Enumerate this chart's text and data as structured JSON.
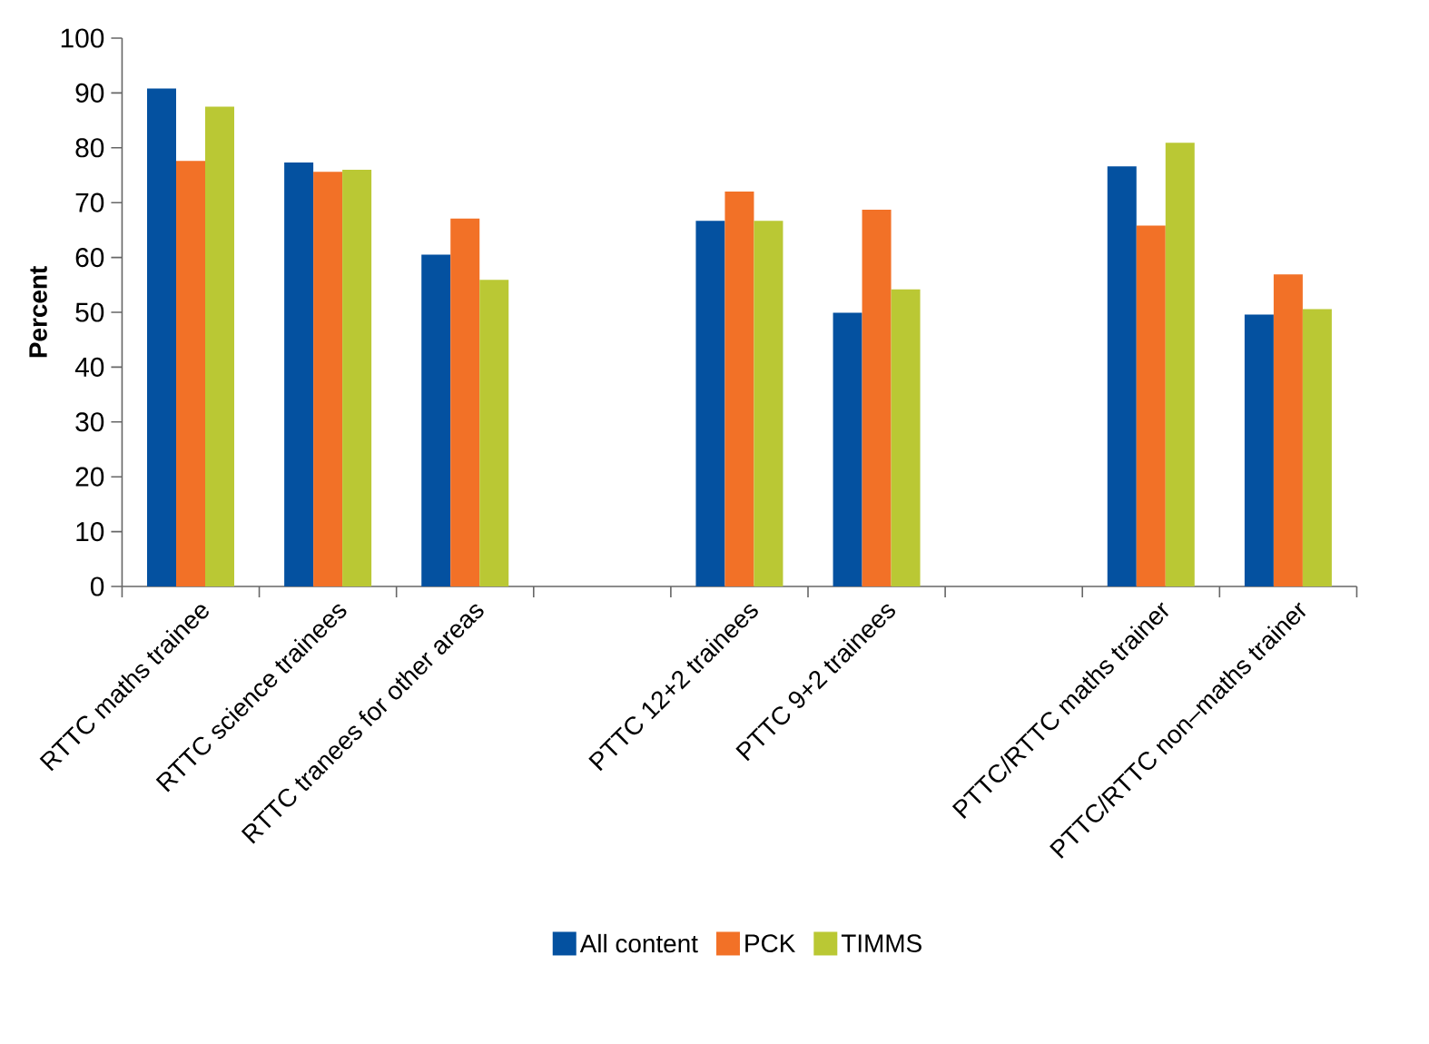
{
  "chart_data": {
    "type": "bar",
    "ylabel": "Percent",
    "categories": [
      "RTTC maths trainee",
      "RTTC science trainees",
      "RTTC tranees for other areas",
      null,
      "PTTC 12+2 trainees",
      "PTTC 9+2 trainees",
      null,
      "PTTC/RTTC maths trainer",
      "PTTC/RTTC non–maths trainer"
    ],
    "series": [
      {
        "name": "All content",
        "color": "#0451a0",
        "values": [
          90.8,
          77.3,
          60.5,
          null,
          66.7,
          49.9,
          null,
          76.6,
          49.6
        ]
      },
      {
        "name": "PCK",
        "color": "#f27127",
        "values": [
          77.6,
          75.6,
          67.1,
          null,
          72.0,
          68.7,
          null,
          65.8,
          56.9
        ]
      },
      {
        "name": "TIMMS",
        "color": "#bac834",
        "values": [
          87.5,
          76.0,
          55.9,
          null,
          66.7,
          54.2,
          null,
          80.9,
          50.6
        ]
      }
    ],
    "ylim": [
      0,
      100
    ],
    "yticks": [
      0,
      10,
      20,
      30,
      40,
      50,
      60,
      70,
      80,
      90,
      100
    ],
    "grid": false,
    "legend": "bottom"
  }
}
